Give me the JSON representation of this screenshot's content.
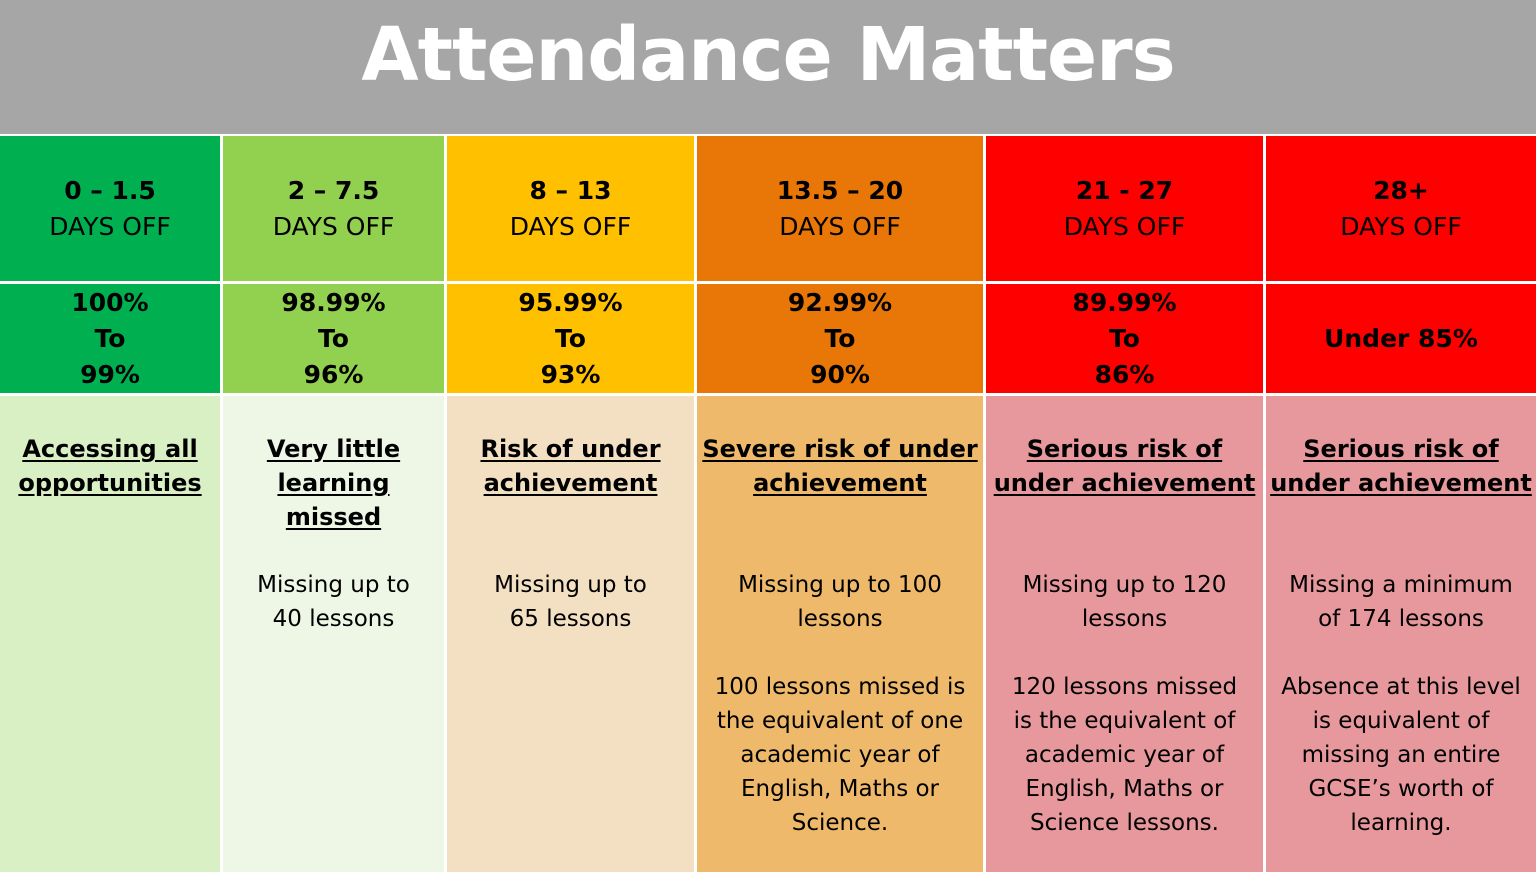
{
  "title": "Attendance Matters",
  "columns": [
    {
      "range": "0 – 1.5",
      "unit": "DAYS OFF",
      "pct": [
        "100%",
        "To",
        "99%"
      ],
      "heading": [
        "Accessing all",
        "opportunities"
      ],
      "text1": "",
      "text2": "",
      "colors": {
        "top": "#00b050",
        "desc": "#d9efc4"
      }
    },
    {
      "range": "2 – 7.5",
      "unit": "DAYS OFF",
      "pct": [
        "98.99%",
        "To",
        "96%"
      ],
      "heading": [
        "Very little",
        "learning missed"
      ],
      "text1": "Missing up to 40 lessons",
      "text2": "",
      "colors": {
        "top": "#92d050",
        "desc": "#eef7e5"
      }
    },
    {
      "range": "8 – 13",
      "unit": "DAYS OFF",
      "pct": [
        "95.99%",
        "To",
        "93%"
      ],
      "heading": [
        "Risk of under",
        "achievement"
      ],
      "text1": "Missing up to 65 lessons",
      "text2": "",
      "colors": {
        "top": "#ffc000",
        "desc": "#f3dfc2"
      }
    },
    {
      "range": "13.5 – 20",
      "unit": "DAYS OFF",
      "pct": [
        "92.99%",
        "To",
        "90%"
      ],
      "heading": [
        "Severe risk of under",
        "achievement"
      ],
      "text1": "Missing up to 100 lessons",
      "text2": "100 lessons missed is the equivalent of one academic year of English, Maths or Science.",
      "colors": {
        "top": "#e97708",
        "desc": "#eeb96b"
      }
    },
    {
      "range": "21 - 27",
      "unit": "DAYS OFF",
      "pct": [
        "89.99%",
        "To",
        "86%"
      ],
      "heading": [
        "Serious risk of",
        "under achievement"
      ],
      "text1": "Missing up to 120 lessons",
      "text2": "120 lessons missed is the equivalent of academic year of English, Maths or Science lessons.",
      "colors": {
        "top": "#ff0000",
        "desc": "#e6989c"
      }
    },
    {
      "range": "28+",
      "unit": "DAYS OFF",
      "pct": [
        "",
        "Under 85%",
        ""
      ],
      "heading": [
        "Serious risk of",
        "under achievement"
      ],
      "text1": "Missing a minimum of 174 lessons",
      "text2": "Absence at this level is equivalent of missing an entire GCSE’s worth of learning.",
      "colors": {
        "top": "#ff0000",
        "desc": "#e6989c"
      }
    }
  ]
}
